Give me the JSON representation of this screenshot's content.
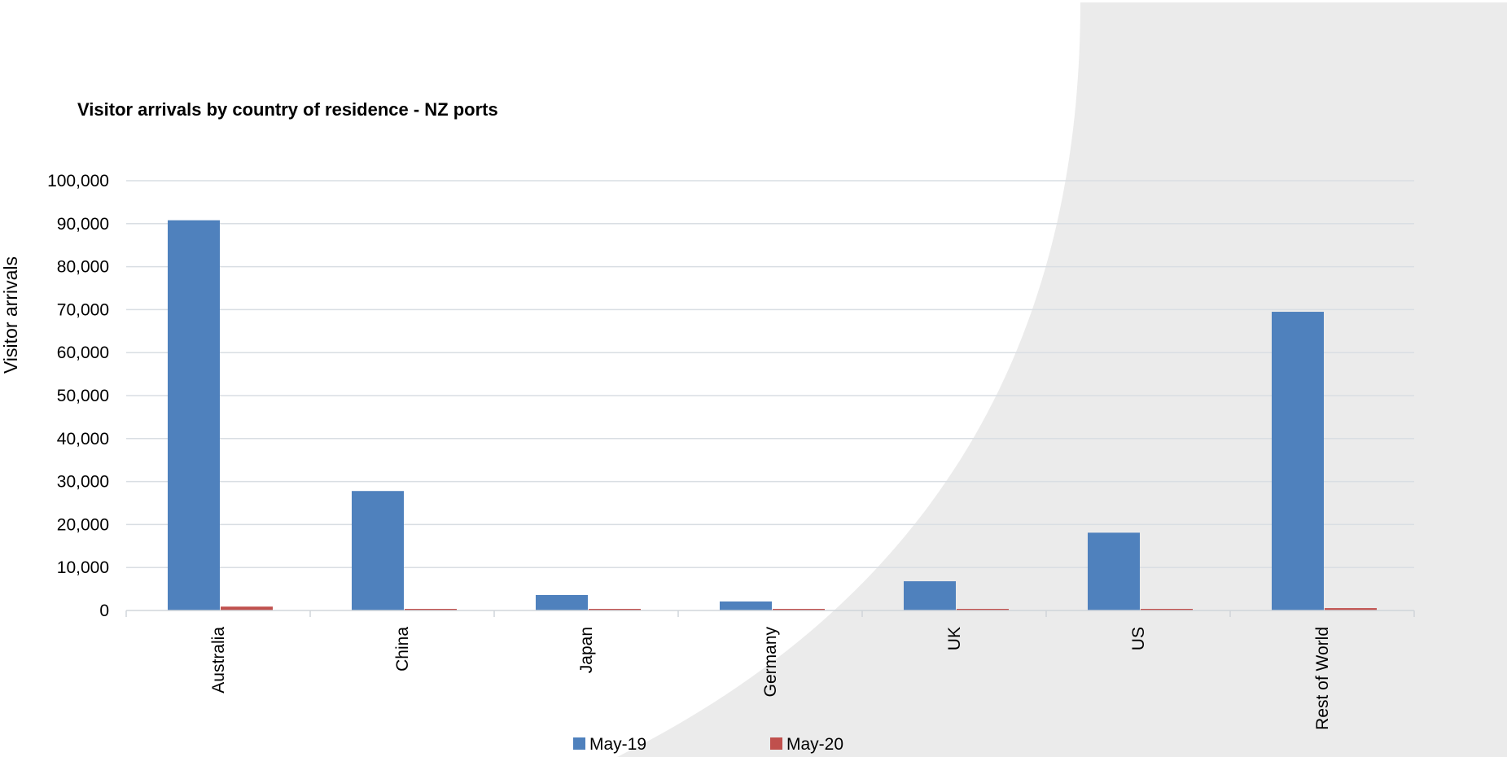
{
  "chart_data": {
    "type": "bar",
    "title": "Visitor arrivals by country of residence - NZ ports",
    "xlabel": "",
    "ylabel": "Visitor arrivals",
    "ylim": [
      0,
      100000
    ],
    "yticks": [
      "0",
      "10,000",
      "20,000",
      "30,000",
      "40,000",
      "50,000",
      "60,000",
      "70,000",
      "80,000",
      "90,000",
      "100,000"
    ],
    "grid": true,
    "legend_position": "bottom",
    "categories": [
      "Australia",
      "China",
      "Japan",
      "Germany",
      "UK",
      "US",
      "Rest of World"
    ],
    "series": [
      {
        "name": "May-19",
        "color": "#4F81BD",
        "values": [
          90800,
          27800,
          3600,
          2100,
          6800,
          18100,
          69500
        ]
      },
      {
        "name": "May-20",
        "color": "#C0504D",
        "values": [
          900,
          20,
          10,
          10,
          40,
          350,
          550
        ]
      }
    ],
    "background_shape_color": "#EBEBEB",
    "gridline_color": "#D9DEE3",
    "axis_color": "#D0D5DA"
  }
}
